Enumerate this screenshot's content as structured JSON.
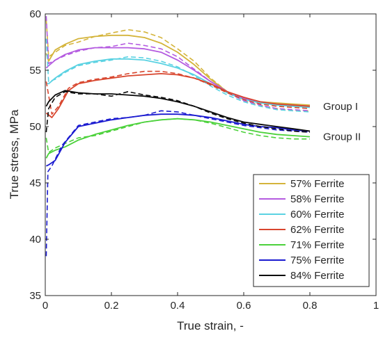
{
  "chart_data": {
    "type": "line",
    "xlabel": "True strain, -",
    "ylabel": "True stress, MPa",
    "xlim": [
      0,
      1
    ],
    "ylim": [
      35,
      60
    ],
    "x_ticks": [
      "0",
      "0.2",
      "0.4",
      "0.6",
      "0.8",
      "1"
    ],
    "y_ticks": [
      "35",
      "40",
      "45",
      "50",
      "55",
      "60"
    ],
    "grid": false,
    "legend_position": "bottom-right",
    "annotations": [
      {
        "text": "Group I",
        "x": 0.84,
        "y": 51.8
      },
      {
        "text": "Group II",
        "x": 0.84,
        "y": 49.1
      }
    ],
    "series": [
      {
        "name": "57% Ferrite",
        "color": "#d4b43a",
        "simulated": [
          [
            0.003,
            56.5
          ],
          [
            0.01,
            55.8
          ],
          [
            0.03,
            56.8
          ],
          [
            0.06,
            57.3
          ],
          [
            0.1,
            57.8
          ],
          [
            0.15,
            58.0
          ],
          [
            0.2,
            58.1
          ],
          [
            0.25,
            58.1
          ],
          [
            0.3,
            57.9
          ],
          [
            0.35,
            57.4
          ],
          [
            0.4,
            56.6
          ],
          [
            0.45,
            55.5
          ],
          [
            0.5,
            54.2
          ],
          [
            0.55,
            53.1
          ],
          [
            0.6,
            52.5
          ],
          [
            0.65,
            52.2
          ],
          [
            0.7,
            52.1
          ],
          [
            0.75,
            52.0
          ],
          [
            0.8,
            51.9
          ]
        ],
        "experimental": [
          [
            0.003,
            59.5
          ],
          [
            0.01,
            56.2
          ],
          [
            0.03,
            56.6
          ],
          [
            0.06,
            57.2
          ],
          [
            0.1,
            57.5
          ],
          [
            0.15,
            58.0
          ],
          [
            0.2,
            58.3
          ],
          [
            0.25,
            58.6
          ],
          [
            0.3,
            58.4
          ],
          [
            0.35,
            57.9
          ],
          [
            0.4,
            56.9
          ],
          [
            0.45,
            55.8
          ],
          [
            0.5,
            54.3
          ],
          [
            0.55,
            53.1
          ],
          [
            0.6,
            52.3
          ],
          [
            0.65,
            51.9
          ],
          [
            0.7,
            51.6
          ],
          [
            0.75,
            51.4
          ],
          [
            0.8,
            51.4
          ]
        ]
      },
      {
        "name": "58% Ferrite",
        "color": "#b45be0",
        "simulated": [
          [
            0.003,
            55.2
          ],
          [
            0.01,
            55.4
          ],
          [
            0.03,
            55.9
          ],
          [
            0.06,
            56.4
          ],
          [
            0.1,
            56.8
          ],
          [
            0.15,
            57.0
          ],
          [
            0.2,
            57.0
          ],
          [
            0.25,
            57.0
          ],
          [
            0.3,
            56.9
          ],
          [
            0.35,
            56.6
          ],
          [
            0.4,
            55.9
          ],
          [
            0.45,
            55.0
          ],
          [
            0.5,
            54.0
          ],
          [
            0.55,
            53.1
          ],
          [
            0.6,
            52.5
          ],
          [
            0.65,
            52.2
          ],
          [
            0.7,
            52.0
          ],
          [
            0.75,
            51.9
          ],
          [
            0.8,
            51.8
          ]
        ],
        "experimental": [
          [
            0.003,
            59.8
          ],
          [
            0.01,
            55.6
          ],
          [
            0.03,
            55.9
          ],
          [
            0.06,
            56.3
          ],
          [
            0.1,
            56.7
          ],
          [
            0.15,
            57.0
          ],
          [
            0.2,
            57.1
          ],
          [
            0.25,
            57.4
          ],
          [
            0.3,
            57.2
          ],
          [
            0.35,
            56.9
          ],
          [
            0.4,
            56.2
          ],
          [
            0.45,
            55.1
          ],
          [
            0.5,
            54.0
          ],
          [
            0.55,
            53.0
          ],
          [
            0.6,
            52.3
          ],
          [
            0.65,
            51.9
          ],
          [
            0.7,
            51.6
          ],
          [
            0.75,
            51.5
          ],
          [
            0.8,
            51.4
          ]
        ]
      },
      {
        "name": "60% Ferrite",
        "color": "#5ad2e2",
        "simulated": [
          [
            0.003,
            53.8
          ],
          [
            0.01,
            53.8
          ],
          [
            0.03,
            54.3
          ],
          [
            0.06,
            54.9
          ],
          [
            0.1,
            55.5
          ],
          [
            0.15,
            55.8
          ],
          [
            0.2,
            56.0
          ],
          [
            0.25,
            56.0
          ],
          [
            0.3,
            55.9
          ],
          [
            0.35,
            55.6
          ],
          [
            0.4,
            55.2
          ],
          [
            0.45,
            54.6
          ],
          [
            0.5,
            53.8
          ],
          [
            0.55,
            53.0
          ],
          [
            0.6,
            52.4
          ],
          [
            0.65,
            52.1
          ],
          [
            0.7,
            51.9
          ],
          [
            0.75,
            51.8
          ],
          [
            0.8,
            51.7
          ]
        ],
        "experimental": [
          [
            0.003,
            57.8
          ],
          [
            0.01,
            54.0
          ],
          [
            0.03,
            54.2
          ],
          [
            0.06,
            54.8
          ],
          [
            0.1,
            55.4
          ],
          [
            0.15,
            55.7
          ],
          [
            0.2,
            55.9
          ],
          [
            0.25,
            56.2
          ],
          [
            0.3,
            56.1
          ],
          [
            0.35,
            55.8
          ],
          [
            0.4,
            55.3
          ],
          [
            0.45,
            54.5
          ],
          [
            0.5,
            53.6
          ],
          [
            0.55,
            52.8
          ],
          [
            0.6,
            52.2
          ],
          [
            0.65,
            51.8
          ],
          [
            0.7,
            51.5
          ],
          [
            0.75,
            51.4
          ],
          [
            0.8,
            51.3
          ]
        ]
      },
      {
        "name": "62% Ferrite",
        "color": "#d8452d",
        "simulated": [
          [
            0.003,
            51.2
          ],
          [
            0.02,
            50.8
          ],
          [
            0.04,
            51.6
          ],
          [
            0.07,
            53.2
          ],
          [
            0.1,
            53.8
          ],
          [
            0.15,
            54.1
          ],
          [
            0.2,
            54.3
          ],
          [
            0.25,
            54.5
          ],
          [
            0.3,
            54.6
          ],
          [
            0.35,
            54.7
          ],
          [
            0.4,
            54.6
          ],
          [
            0.45,
            54.3
          ],
          [
            0.5,
            53.8
          ],
          [
            0.55,
            53.1
          ],
          [
            0.6,
            52.6
          ],
          [
            0.65,
            52.2
          ],
          [
            0.7,
            52.0
          ],
          [
            0.75,
            51.9
          ],
          [
            0.8,
            51.8
          ]
        ],
        "experimental": [
          [
            0.003,
            54.0
          ],
          [
            0.02,
            51.1
          ],
          [
            0.04,
            51.8
          ],
          [
            0.07,
            53.4
          ],
          [
            0.1,
            53.9
          ],
          [
            0.15,
            54.2
          ],
          [
            0.2,
            54.4
          ],
          [
            0.25,
            54.7
          ],
          [
            0.3,
            54.9
          ],
          [
            0.35,
            54.9
          ],
          [
            0.4,
            54.7
          ],
          [
            0.45,
            54.3
          ],
          [
            0.5,
            53.7
          ],
          [
            0.55,
            53.0
          ],
          [
            0.6,
            52.4
          ],
          [
            0.65,
            52.0
          ],
          [
            0.7,
            51.8
          ],
          [
            0.75,
            51.7
          ],
          [
            0.8,
            51.6
          ]
        ]
      },
      {
        "name": "71% Ferrite",
        "color": "#4bd13a",
        "simulated": [
          [
            0.003,
            47.2
          ],
          [
            0.01,
            47.6
          ],
          [
            0.03,
            47.9
          ],
          [
            0.06,
            48.2
          ],
          [
            0.1,
            48.8
          ],
          [
            0.15,
            49.3
          ],
          [
            0.2,
            49.7
          ],
          [
            0.25,
            50.1
          ],
          [
            0.3,
            50.4
          ],
          [
            0.35,
            50.6
          ],
          [
            0.4,
            50.7
          ],
          [
            0.45,
            50.6
          ],
          [
            0.5,
            50.4
          ],
          [
            0.55,
            50.1
          ],
          [
            0.6,
            49.8
          ],
          [
            0.65,
            49.5
          ],
          [
            0.7,
            49.3
          ],
          [
            0.75,
            49.2
          ],
          [
            0.8,
            49.1
          ]
        ],
        "experimental": [
          [
            0.003,
            49.0
          ],
          [
            0.01,
            47.7
          ],
          [
            0.03,
            48.1
          ],
          [
            0.06,
            48.5
          ],
          [
            0.1,
            49.0
          ],
          [
            0.15,
            49.2
          ],
          [
            0.2,
            49.6
          ],
          [
            0.25,
            50.0
          ],
          [
            0.3,
            50.4
          ],
          [
            0.35,
            50.6
          ],
          [
            0.4,
            50.7
          ],
          [
            0.45,
            50.6
          ],
          [
            0.5,
            50.3
          ],
          [
            0.55,
            49.9
          ],
          [
            0.6,
            49.5
          ],
          [
            0.65,
            49.2
          ],
          [
            0.7,
            49.0
          ],
          [
            0.75,
            48.9
          ],
          [
            0.8,
            48.9
          ]
        ]
      },
      {
        "name": "75% Ferrite",
        "color": "#1a1ad0",
        "simulated": [
          [
            0.003,
            46.5
          ],
          [
            0.01,
            46.6
          ],
          [
            0.03,
            47.0
          ],
          [
            0.06,
            48.6
          ],
          [
            0.1,
            50.0
          ],
          [
            0.15,
            50.3
          ],
          [
            0.2,
            50.6
          ],
          [
            0.25,
            50.8
          ],
          [
            0.3,
            51.0
          ],
          [
            0.35,
            51.1
          ],
          [
            0.4,
            51.1
          ],
          [
            0.45,
            51.0
          ],
          [
            0.5,
            50.8
          ],
          [
            0.55,
            50.5
          ],
          [
            0.6,
            50.2
          ],
          [
            0.65,
            50.0
          ],
          [
            0.7,
            49.9
          ],
          [
            0.75,
            49.7
          ],
          [
            0.8,
            49.6
          ]
        ],
        "experimental": [
          [
            0.003,
            38.5
          ],
          [
            0.008,
            46.0
          ],
          [
            0.02,
            46.5
          ],
          [
            0.05,
            48.3
          ],
          [
            0.1,
            50.1
          ],
          [
            0.15,
            50.4
          ],
          [
            0.2,
            50.7
          ],
          [
            0.25,
            50.8
          ],
          [
            0.3,
            51.0
          ],
          [
            0.35,
            51.4
          ],
          [
            0.4,
            51.3
          ],
          [
            0.45,
            51.0
          ],
          [
            0.5,
            50.7
          ],
          [
            0.55,
            50.4
          ],
          [
            0.6,
            50.1
          ],
          [
            0.65,
            49.9
          ],
          [
            0.7,
            49.7
          ],
          [
            0.75,
            49.6
          ],
          [
            0.8,
            49.5
          ]
        ]
      },
      {
        "name": "84% Ferrite",
        "color": "#0a0a0a",
        "simulated": [
          [
            0.003,
            51.8
          ],
          [
            0.01,
            52.2
          ],
          [
            0.03,
            52.8
          ],
          [
            0.06,
            53.2
          ],
          [
            0.1,
            53.0
          ],
          [
            0.15,
            52.9
          ],
          [
            0.2,
            52.9
          ],
          [
            0.25,
            52.8
          ],
          [
            0.3,
            52.7
          ],
          [
            0.35,
            52.5
          ],
          [
            0.4,
            52.2
          ],
          [
            0.45,
            51.8
          ],
          [
            0.5,
            51.3
          ],
          [
            0.55,
            50.8
          ],
          [
            0.6,
            50.4
          ],
          [
            0.65,
            50.2
          ],
          [
            0.7,
            50.0
          ],
          [
            0.75,
            49.8
          ],
          [
            0.8,
            49.6
          ]
        ],
        "experimental": [
          [
            0.003,
            49.5
          ],
          [
            0.01,
            51.6
          ],
          [
            0.03,
            52.6
          ],
          [
            0.06,
            53.1
          ],
          [
            0.1,
            52.9
          ],
          [
            0.15,
            52.9
          ],
          [
            0.2,
            52.7
          ],
          [
            0.25,
            53.1
          ],
          [
            0.3,
            52.8
          ],
          [
            0.35,
            52.6
          ],
          [
            0.4,
            52.3
          ],
          [
            0.45,
            51.8
          ],
          [
            0.5,
            51.2
          ],
          [
            0.55,
            50.7
          ],
          [
            0.6,
            50.3
          ],
          [
            0.65,
            50.0
          ],
          [
            0.7,
            49.8
          ],
          [
            0.75,
            49.6
          ],
          [
            0.8,
            49.5
          ]
        ]
      }
    ]
  }
}
